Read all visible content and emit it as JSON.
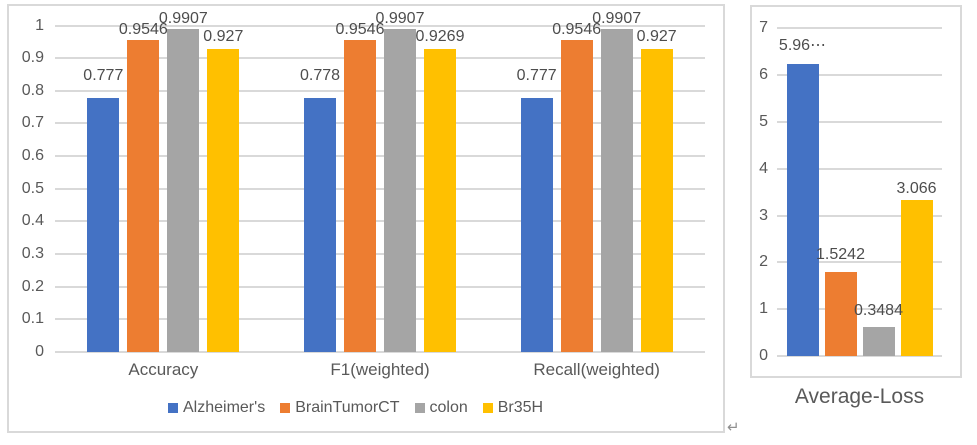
{
  "palette": {
    "series_blue": "#4472C4",
    "series_orange": "#ED7D31",
    "series_gray": "#A5A5A5",
    "series_yellow": "#FFC000",
    "gridline": "#D9D9D9",
    "panel_border": "#D9D9D9",
    "axis_text": "#595959",
    "data_label_text": "#4D4D4D"
  },
  "return_mark": "↵",
  "chart_data": [
    {
      "type": "bar",
      "categories": [
        "Accuracy",
        "F1(weighted)",
        "Recall(weighted)"
      ],
      "series": [
        {
          "name": "Alzheimer's",
          "color": "#4472C4",
          "values": [
            0.777,
            0.778,
            0.777
          ],
          "value_labels": [
            "0.777",
            "0.778",
            "0.777"
          ]
        },
        {
          "name": "BrainTumorCT",
          "color": "#ED7D31",
          "values": [
            0.9546,
            0.9546,
            0.9546
          ],
          "value_labels": [
            "0.9546",
            "0.9546",
            "0.9546"
          ]
        },
        {
          "name": "colon",
          "color": "#A5A5A5",
          "values": [
            0.9907,
            0.9907,
            0.9907
          ],
          "value_labels": [
            "0.9907",
            "0.9907",
            "0.9907"
          ]
        },
        {
          "name": "Br35H",
          "color": "#FFC000",
          "values": [
            0.927,
            0.9269,
            0.927
          ],
          "value_labels": [
            "0.927",
            "0.9269",
            "0.927"
          ]
        }
      ],
      "ylim": [
        0,
        1
      ],
      "yticks": [
        "1",
        "0.9",
        "0.8",
        "0.7",
        "0.6",
        "0.5",
        "0.4",
        "0.3",
        "0.2",
        "0.1",
        "0"
      ],
      "grid": true,
      "legend_position": "bottom"
    },
    {
      "type": "bar",
      "categories": [
        "Average-Loss"
      ],
      "series": [
        {
          "name": "Alzheimer's",
          "color": "#4472C4",
          "values": [
            5.96
          ],
          "value_labels": [
            "5.96⋯"
          ],
          "draw_values": [
            6.24
          ]
        },
        {
          "name": "BrainTumorCT",
          "color": "#ED7D31",
          "values": [
            1.5242
          ],
          "value_labels": [
            "1.5242"
          ],
          "draw_values": [
            1.8
          ]
        },
        {
          "name": "colon",
          "color": "#A5A5A5",
          "values": [
            0.3484
          ],
          "value_labels": [
            "0.3484"
          ],
          "draw_values": [
            0.62
          ]
        },
        {
          "name": "Br35H",
          "color": "#FFC000",
          "values": [
            3.066
          ],
          "value_labels": [
            "3.066"
          ],
          "draw_values": [
            3.33
          ]
        }
      ],
      "ylim": [
        0,
        7
      ],
      "yticks": [
        "7",
        "6",
        "5",
        "4",
        "3",
        "2",
        "1",
        "0"
      ],
      "grid": true,
      "legend_position": "none"
    }
  ]
}
